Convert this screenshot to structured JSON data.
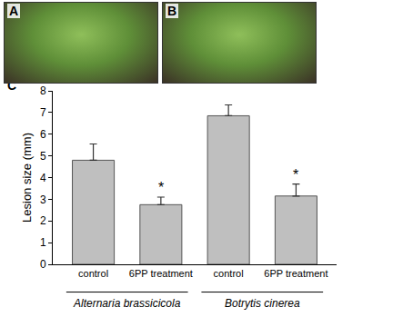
{
  "panel_labels": [
    "A",
    "B",
    "C"
  ],
  "chart_data": {
    "type": "bar",
    "y_label": "Lesion size (mm)",
    "categories": [
      "control",
      "6PP treatment",
      "control",
      "6PP treatment"
    ],
    "groups": [
      {
        "name": "Alternaria brassicicola",
        "size": 2
      },
      {
        "name": "Botrytis cinerea",
        "size": 2
      }
    ],
    "values": [
      4.8,
      2.75,
      6.85,
      3.15
    ],
    "errors": [
      0.75,
      0.35,
      0.5,
      0.55
    ],
    "annotations": [
      {
        "category": 1,
        "text": "*"
      },
      {
        "category": 3,
        "text": "*"
      }
    ],
    "color": "#bfbfbf",
    "ylim": [
      0,
      8
    ],
    "yticks": [
      0,
      1,
      2,
      3,
      4,
      5,
      6,
      7,
      8
    ],
    "grid": false
  }
}
